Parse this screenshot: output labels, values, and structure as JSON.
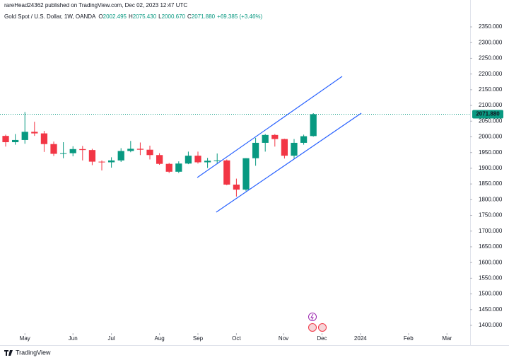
{
  "header": {
    "author_line": "rareHead24362 published on TradingView.com, Dec 02, 2023 12:47 UTC"
  },
  "footer": {
    "brand": "TradingView"
  },
  "chart_data": {
    "type": "candlestick",
    "title": "Gold Spot / U.S. Dollar, 1W, OANDA",
    "ohlc_legend": [
      {
        "key": "O",
        "value": "2002.495"
      },
      {
        "key": "H",
        "value": "2075.430"
      },
      {
        "key": "L",
        "value": "2000.670"
      },
      {
        "key": "C",
        "value": "2071.880"
      }
    ],
    "change": "+69.385 (+3.46%)",
    "x": [
      0,
      1,
      2,
      3,
      4,
      5,
      6,
      7,
      8,
      9,
      10,
      11,
      12,
      13,
      14,
      15,
      16,
      17,
      18,
      19,
      20,
      21,
      22,
      23,
      24,
      25,
      26,
      27,
      28,
      29,
      30,
      31,
      32
    ],
    "open": [
      2003,
      1983,
      1990,
      2016,
      2011,
      1977,
      1946,
      1948,
      1961,
      1958,
      1921,
      1919,
      1925,
      1955,
      1962,
      1959,
      1942,
      1914,
      1889,
      1915,
      1940,
      1919,
      1924,
      1925,
      1848,
      1832,
      1932,
      1981,
      2006,
      1993,
      1940,
      1981,
      2002.495
    ],
    "high": [
      2007,
      2009,
      2079,
      2048,
      2019,
      1985,
      1983,
      1970,
      1971,
      1962,
      1925,
      1935,
      1964,
      1987,
      1982,
      1972,
      1948,
      1917,
      1922,
      1953,
      1953,
      1933,
      1947,
      1928,
      1867,
      1932,
      1997,
      2009,
      2009,
      1994,
      1993,
      2007,
      2075.43
    ],
    "low": [
      1969,
      1975,
      1978,
      2003,
      1952,
      1939,
      1932,
      1938,
      1925,
      1910,
      1893,
      1902,
      1920,
      1951,
      1942,
      1928,
      1911,
      1885,
      1885,
      1913,
      1915,
      1901,
      1913,
      1846,
      1810,
      1827,
      1908,
      1953,
      1969,
      1931,
      1931,
      1975,
      2000.67
    ],
    "close": [
      1983,
      1990,
      2016,
      2011,
      1977,
      1946,
      1948,
      1961,
      1958,
      1921,
      1919,
      1925,
      1955,
      1962,
      1959,
      1942,
      1914,
      1889,
      1915,
      1940,
      1919,
      1924,
      1925,
      1848,
      1832,
      1932,
      1981,
      2006,
      1993,
      1940,
      1981,
      2002,
      2071.88
    ],
    "up_color": "#089981",
    "down_color": "#f23645",
    "xlim": [
      -0.59,
      48.31
    ],
    "xticks": [
      {
        "value": 2,
        "label": "May"
      },
      {
        "value": 7,
        "label": "Jun"
      },
      {
        "value": 11,
        "label": "Jul"
      },
      {
        "value": 16,
        "label": "Aug"
      },
      {
        "value": 20,
        "label": "Sep"
      },
      {
        "value": 24,
        "label": "Oct"
      },
      {
        "value": 28.9,
        "label": "Nov"
      },
      {
        "value": 32.9,
        "label": "Dec"
      },
      {
        "value": 36.9,
        "label": "2024"
      },
      {
        "value": 41.9,
        "label": "Feb"
      },
      {
        "value": 45.9,
        "label": "Mar"
      }
    ],
    "ylim": [
      1377.5,
      2435.6
    ],
    "yticks": [
      {
        "value": 1400,
        "label": "1400.000"
      },
      {
        "value": 1450,
        "label": "1450.000"
      },
      {
        "value": 1500,
        "label": "1500.000"
      },
      {
        "value": 1550,
        "label": "1550.000"
      },
      {
        "value": 1600,
        "label": "1600.000"
      },
      {
        "value": 1650,
        "label": "1650.000"
      },
      {
        "value": 1700,
        "label": "1700.000"
      },
      {
        "value": 1750,
        "label": "1750.000"
      },
      {
        "value": 1800,
        "label": "1800.000"
      },
      {
        "value": 1850,
        "label": "1850.000"
      },
      {
        "value": 1900,
        "label": "1900.000"
      },
      {
        "value": 1950,
        "label": "1950.000"
      },
      {
        "value": 2000,
        "label": "2000.000"
      },
      {
        "value": 2050,
        "label": "2050.000"
      },
      {
        "value": 2100,
        "label": "2100.000"
      },
      {
        "value": 2150,
        "label": "2150.000"
      },
      {
        "value": 2200,
        "label": "2200.000"
      },
      {
        "value": 2250,
        "label": "2250.000"
      },
      {
        "value": 2300,
        "label": "2300.000"
      },
      {
        "value": 2350,
        "label": "2350.000"
      }
    ],
    "grid": false,
    "last_price": {
      "value": 2071.88,
      "label": "2071.880"
    },
    "channel": {
      "color": "#2962ff",
      "lines": [
        {
          "x": [
            19.93,
            35.0
          ],
          "y": [
            1870.5,
            2192.4
          ]
        },
        {
          "x": [
            21.9,
            36.99
          ],
          "y": [
            1760.2,
            2075.4
          ]
        }
      ]
    }
  }
}
